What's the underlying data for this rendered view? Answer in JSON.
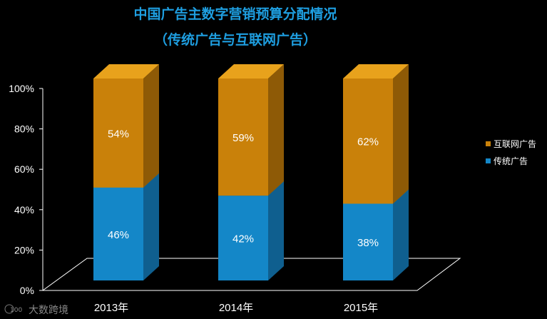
{
  "chart_data": {
    "type": "bar",
    "stacked": true,
    "style": "3d",
    "title": "中国广告主数字营销预算分配情况",
    "subtitle": "（传统广告与互联网广告）",
    "categories": [
      "2013年",
      "2014年",
      "2015年"
    ],
    "series": [
      {
        "name": "传统广告",
        "values": [
          46,
          42,
          38
        ],
        "labels": [
          "46%",
          "42%",
          "38%"
        ]
      },
      {
        "name": "互联网广告",
        "values": [
          54,
          59,
          62
        ],
        "labels": [
          "54%",
          "59%",
          "62%"
        ]
      }
    ],
    "yticks": [
      "0%",
      "20%",
      "40%",
      "60%",
      "80%",
      "100%"
    ],
    "ylim": [
      0,
      100
    ],
    "grid": false,
    "legend": {
      "position": "right",
      "order": [
        "互联网广告",
        "传统广告"
      ]
    }
  },
  "colors": {
    "background": "#000000",
    "title": "#1e9ee0",
    "traditional": "#1487c8",
    "traditional_top": "#2aa3e6",
    "traditional_side": "#0f5f8f",
    "internet": "#c9810a",
    "internet_top": "#e8a21c",
    "internet_side": "#8e5a06",
    "text": "#ffffff"
  },
  "watermark": {
    "logo_text": "100",
    "brand": "大数跨境"
  }
}
